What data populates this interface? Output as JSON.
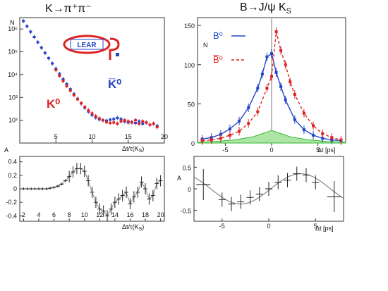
{
  "left_title": "K→π⁺π⁻",
  "right_title": "B→J/ψ K",
  "right_title_sub": "S",
  "logo_text": "LEAR",
  "colors": {
    "blue": "#2244cc",
    "red": "#dd2222",
    "green": "#33bb33",
    "dark": "#222222",
    "grey": "#888888"
  },
  "chart_data": [
    {
      "id": "kaon_rate",
      "type": "scatter",
      "ylabel": "N",
      "xlabel": "Δt/τ(K",
      "xlabel_sub": "S",
      "ylog": true,
      "xlim": [
        0,
        20
      ],
      "ylim_exp": [
        1,
        6.5
      ],
      "xticks": [
        5,
        10,
        15,
        20
      ],
      "yticks": [
        {
          "v": 2,
          "t": "10²"
        },
        {
          "v": 3,
          "t": "10³"
        },
        {
          "v": 4,
          "t": "10⁴"
        },
        {
          "v": 5,
          "t": "10⁵"
        },
        {
          "v": 6,
          "t": "10⁶"
        }
      ],
      "labels": [
        {
          "text": "K̅⁰",
          "series": "Kbar0"
        },
        {
          "text": "K⁰",
          "series": "K0"
        }
      ],
      "series": [
        {
          "name": "K̅⁰",
          "color": "blue",
          "x": [
            0.5,
            1,
            1.5,
            2,
            2.5,
            3,
            3.5,
            4,
            4.5,
            5,
            5.5,
            6,
            6.5,
            7,
            7.5,
            8,
            8.5,
            9,
            9.5,
            10,
            10.5,
            11,
            11.5,
            12,
            12.5,
            13,
            13.5,
            14,
            14.5,
            15,
            15.5,
            16,
            16.5,
            17,
            17.5,
            18,
            18.5,
            19
          ],
          "y": [
            6.35,
            6.12,
            5.88,
            5.65,
            5.42,
            5.18,
            4.95,
            4.72,
            4.49,
            4.26,
            4.03,
            3.8,
            3.58,
            3.36,
            3.15,
            2.94,
            2.74,
            2.55,
            2.38,
            2.23,
            2.12,
            2.04,
            2.0,
            1.98,
            2.02,
            2.05,
            2.1,
            2.05,
            1.95,
            1.9,
            1.92,
            1.88,
            1.95,
            1.85,
            1.9,
            1.8,
            1.85,
            1.75
          ]
        },
        {
          "name": "K⁰",
          "color": "red",
          "x": [
            5,
            5.5,
            6,
            6.5,
            7,
            7.5,
            8,
            8.5,
            9,
            9.5,
            10,
            10.5,
            11,
            11.5,
            12,
            12.5,
            13,
            13.5,
            14,
            14.5,
            15,
            15.5,
            16,
            16.5,
            17,
            17.5,
            18,
            18.5,
            19
          ],
          "y": [
            4.2,
            3.95,
            3.72,
            3.5,
            3.3,
            3.1,
            2.92,
            2.74,
            2.58,
            2.43,
            2.3,
            2.18,
            2.08,
            2.0,
            1.92,
            1.88,
            1.9,
            1.85,
            1.95,
            2.0,
            1.95,
            1.9,
            2.0,
            1.85,
            1.95,
            1.9,
            1.8,
            1.85,
            1.7
          ]
        }
      ]
    },
    {
      "id": "b_rate",
      "type": "scatter",
      "ylabel": "N",
      "xlabel": "Δt [ps]",
      "xlim": [
        -8,
        8
      ],
      "ylim": [
        0,
        160
      ],
      "xticks": [
        -5,
        0,
        5
      ],
      "yticks": [
        0,
        50,
        100,
        150
      ],
      "series": [
        {
          "name": "B⁰",
          "color": "blue",
          "x": [
            -7.5,
            -6.5,
            -5.5,
            -4.5,
            -3.5,
            -2.5,
            -1.5,
            -1,
            -0.5,
            0,
            0.5,
            1,
            1.5,
            2.5,
            3.5,
            4.5,
            5.5,
            6.5,
            7.5
          ],
          "y": [
            5,
            7,
            11,
            18,
            28,
            45,
            70,
            88,
            110,
            114,
            90,
            72,
            55,
            30,
            17,
            10,
            6,
            4,
            3
          ]
        },
        {
          "name": "B̅⁰",
          "color": "red",
          "x": [
            -7.5,
            -6.5,
            -5.5,
            -4.5,
            -3.5,
            -2.5,
            -1.5,
            -0.5,
            0,
            0.5,
            1,
            1.5,
            2,
            2.5,
            3.5,
            4.5,
            5.5,
            6.5,
            7.5
          ],
          "y": [
            3,
            4,
            6,
            10,
            15,
            25,
            40,
            70,
            85,
            142,
            118,
            100,
            78,
            62,
            38,
            22,
            12,
            7,
            4
          ]
        },
        {
          "name": "background",
          "color": "green",
          "x": [
            -8,
            -6,
            -4,
            -2,
            -1,
            0,
            1,
            2,
            4,
            6,
            8
          ],
          "y": [
            1,
            2,
            4,
            8,
            12,
            16,
            12,
            8,
            4,
            2,
            1
          ]
        }
      ]
    },
    {
      "id": "kaon_asym",
      "type": "scatter",
      "ylabel": "A",
      "xlabel": "Δt/τ(K",
      "xlabel_sub": "S",
      "xlim": [
        1.5,
        20.5
      ],
      "ylim": [
        -0.48,
        0.48
      ],
      "xticks": [
        2,
        4,
        6,
        8,
        10,
        12,
        14,
        16,
        18,
        20
      ],
      "yticks": [
        -0.4,
        -0.2,
        0,
        0.2,
        0.4
      ],
      "series": [
        {
          "name": "data",
          "color": "dark",
          "x": [
            2,
            2.5,
            3,
            3.5,
            4,
            4.5,
            5,
            5.5,
            6,
            6.5,
            7,
            7.5,
            8,
            8.5,
            9,
            9.5,
            10,
            10.5,
            11,
            11.5,
            12,
            12.5,
            13,
            13.5,
            14,
            14.5,
            15,
            15.5,
            16,
            16.5,
            17,
            17.5,
            18,
            18.5,
            19,
            19.5,
            20
          ],
          "y": [
            0,
            0,
            0,
            0,
            0,
            0,
            0,
            0.01,
            0.02,
            0.04,
            0.07,
            0.12,
            0.18,
            0.25,
            0.3,
            0.3,
            0.26,
            0.12,
            -0.05,
            -0.2,
            -0.3,
            -0.33,
            -0.4,
            -0.3,
            -0.2,
            -0.15,
            -0.1,
            -0.05,
            -0.22,
            -0.12,
            -0.05,
            0.1,
            0.0,
            -0.15,
            -0.1,
            0.08,
            0.12
          ]
        }
      ]
    },
    {
      "id": "b_asym",
      "type": "scatter",
      "ylabel": "A",
      "xlabel": "Δt [ps]",
      "xlim": [
        -8,
        8
      ],
      "ylim": [
        -0.75,
        0.75
      ],
      "xticks": [
        -5,
        0,
        5
      ],
      "yticks": [
        -0.5,
        0,
        0.5
      ],
      "series": [
        {
          "name": "data",
          "color": "dark",
          "x": [
            -7,
            -5,
            -4,
            -3,
            -2,
            -1,
            0,
            1,
            2,
            3,
            4,
            5,
            7
          ],
          "y": [
            0.1,
            -0.25,
            -0.35,
            -0.3,
            -0.2,
            -0.12,
            0.0,
            0.15,
            0.2,
            0.35,
            0.32,
            0.15,
            -0.18
          ]
        }
      ]
    }
  ]
}
